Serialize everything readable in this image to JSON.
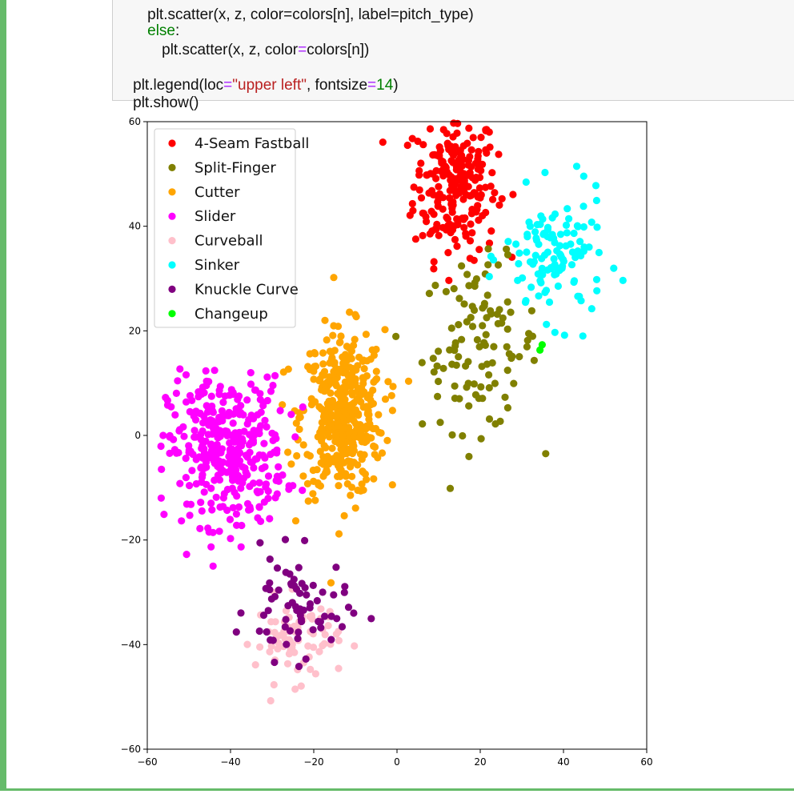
{
  "code": {
    "line0": {
      "cut": "plt.scatter(x, z, color=colors[n], label=pitch_type)",
      "kw": "",
      "rest": ""
    },
    "line1": {
      "kw": "else",
      "rest": ":"
    },
    "line2": {
      "fn": "plt.scatter(x, z, color",
      "eq": "=",
      "rest": "colors[n])"
    },
    "line3": {
      "fn": "plt.legend(loc",
      "eq": "=",
      "str": "\"upper left\"",
      "mid": ", fontsize",
      "eq2": "=",
      "num": "14",
      "end": ")"
    },
    "line4": {
      "text": "plt.show()"
    }
  },
  "chart_data": {
    "type": "scatter",
    "xlim": [
      -60,
      60
    ],
    "ylim": [
      -60,
      60
    ],
    "xticks": [
      "−60",
      "−40",
      "−20",
      "0",
      "20",
      "40",
      "60"
    ],
    "yticks": [
      "60",
      "40",
      "20",
      "0",
      "−20",
      "−40",
      "−60"
    ],
    "legend_position": "upper left",
    "grid": false,
    "series": [
      {
        "name": "4-Seam Fastball",
        "color": "#ff0000",
        "center": [
          14,
          48
        ],
        "spread": [
          5,
          7
        ],
        "n": 230
      },
      {
        "name": "Split-Finger",
        "color": "#808000",
        "center": [
          20,
          17
        ],
        "spread": [
          7,
          8
        ],
        "n": 110
      },
      {
        "name": "Cutter",
        "color": "#ffa500",
        "center": [
          -13,
          4
        ],
        "spread": [
          5,
          8
        ],
        "n": 420
      },
      {
        "name": "Slider",
        "color": "#ff00ff",
        "center": [
          -41,
          -3
        ],
        "spread": [
          7,
          7
        ],
        "n": 360
      },
      {
        "name": "Curveball",
        "color": "#ffc0cb",
        "center": [
          -24,
          -39
        ],
        "spread": [
          5,
          4
        ],
        "n": 80
      },
      {
        "name": "Sinker",
        "color": "#00ffff",
        "center": [
          38,
          34
        ],
        "spread": [
          6,
          6
        ],
        "n": 120
      },
      {
        "name": "Knuckle Curve",
        "color": "#800080",
        "center": [
          -24,
          -33
        ],
        "spread": [
          6,
          5
        ],
        "n": 70
      },
      {
        "name": "Changeup",
        "color": "#00ff00",
        "center": [
          34,
          17
        ],
        "spread": [
          0.4,
          0.4
        ],
        "n": 2
      }
    ]
  }
}
